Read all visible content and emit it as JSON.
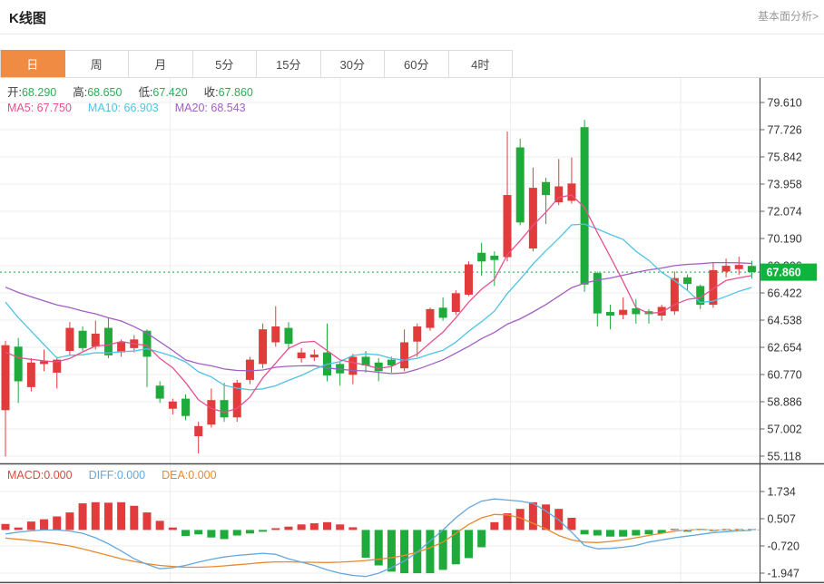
{
  "header": {
    "title": "K线图",
    "more_link": "基本面分析>"
  },
  "tabs": [
    {
      "label": "日",
      "active": true
    },
    {
      "label": "周",
      "active": false
    },
    {
      "label": "月",
      "active": false
    },
    {
      "label": "5分",
      "active": false
    },
    {
      "label": "15分",
      "active": false
    },
    {
      "label": "30分",
      "active": false
    },
    {
      "label": "60分",
      "active": false
    },
    {
      "label": "4时",
      "active": false
    }
  ],
  "info_bar": {
    "open_label": "开:",
    "open": "68.290",
    "high_label": "高:",
    "high": "68.650",
    "low_label": "低:",
    "low": "67.420",
    "close_label": "收:",
    "close": "67.860"
  },
  "ma_bar": {
    "ma5_label": "MA5:",
    "ma5": "67.750",
    "ma10_label": "MA10:",
    "ma10": "66.903",
    "ma20_label": "MA20:",
    "ma20": "68.543"
  },
  "macd_bar": {
    "macd_label": "MACD:",
    "macd": "0.000",
    "diff_label": "DIFF:",
    "diff": "0.000",
    "dea_label": "DEA:",
    "dea": "0.000"
  },
  "last_price_badge": "67.860",
  "colors": {
    "up": "#e23b3b",
    "down": "#1faa3c",
    "ohlc_value": "#2bad56",
    "ma5": "#e8508e",
    "ma10": "#4fc3e4",
    "ma20": "#a35ec5",
    "diff": "#64a8dc",
    "dea": "#e78a2e",
    "macd_label": "#dc4a41",
    "accent_tab": "#ef8b43",
    "badge": "#0fb43c",
    "dotted_line": "#3dbb66",
    "zero_dash": "#a8d8ea",
    "grid": "#ededed",
    "axis_text": "#333333",
    "frame": "#4d4d4d"
  },
  "chart_data": {
    "type": "candlestick",
    "title": "K线图 (daily K-line with MA5/MA10/MA20 overlays and MACD sub-chart)",
    "price_axis_ticks": [
      79.61,
      77.726,
      75.842,
      73.958,
      72.074,
      70.19,
      68.306,
      66.422,
      64.538,
      62.654,
      60.77,
      58.886,
      57.002,
      55.118
    ],
    "last_price": 67.86,
    "candles_ohlc": [
      [
        58.3,
        63.1,
        55.1,
        62.8
      ],
      [
        62.7,
        63.3,
        58.8,
        60.3
      ],
      [
        59.9,
        61.9,
        59.6,
        61.6
      ],
      [
        61.5,
        62.5,
        61.0,
        61.7
      ],
      [
        60.9,
        62.0,
        59.8,
        61.8
      ],
      [
        62.4,
        64.4,
        62.1,
        64.0
      ],
      [
        63.8,
        64.1,
        62.4,
        62.6
      ],
      [
        62.7,
        64.5,
        62.5,
        63.6
      ],
      [
        64.0,
        64.7,
        61.9,
        62.1
      ],
      [
        62.3,
        63.2,
        62.0,
        63.0
      ],
      [
        62.6,
        63.5,
        62.3,
        63.2
      ],
      [
        63.8,
        63.9,
        59.9,
        62.0
      ],
      [
        60.0,
        60.3,
        58.8,
        59.1
      ],
      [
        58.4,
        59.1,
        58.0,
        58.9
      ],
      [
        59.1,
        59.4,
        57.6,
        57.9
      ],
      [
        56.5,
        57.5,
        55.3,
        57.2
      ],
      [
        57.3,
        59.8,
        57.1,
        59.0
      ],
      [
        59.0,
        60.2,
        57.5,
        57.8
      ],
      [
        57.8,
        60.4,
        57.5,
        60.2
      ],
      [
        60.4,
        62.0,
        60.1,
        61.8
      ],
      [
        61.5,
        64.3,
        61.2,
        63.9
      ],
      [
        63.0,
        65.5,
        62.7,
        64.1
      ],
      [
        64.0,
        64.4,
        62.5,
        62.9
      ],
      [
        61.9,
        62.6,
        61.6,
        62.3
      ],
      [
        61.95,
        62.5,
        61.7,
        62.15
      ],
      [
        62.3,
        64.3,
        60.3,
        60.7
      ],
      [
        61.5,
        61.7,
        60.0,
        60.85
      ],
      [
        60.75,
        62.2,
        60.1,
        62.0
      ],
      [
        62.0,
        62.4,
        60.9,
        61.4
      ],
      [
        61.6,
        61.9,
        60.3,
        61.0
      ],
      [
        61.8,
        62.0,
        60.9,
        61.4
      ],
      [
        61.2,
        63.9,
        61.0,
        63.0
      ],
      [
        63.05,
        64.3,
        62.0,
        64.1
      ],
      [
        64.0,
        65.4,
        63.8,
        65.3
      ],
      [
        65.4,
        66.1,
        64.5,
        64.7
      ],
      [
        65.1,
        66.6,
        64.9,
        66.4
      ],
      [
        66.3,
        68.6,
        66.2,
        68.4
      ],
      [
        69.2,
        69.9,
        67.6,
        68.6
      ],
      [
        69.0,
        69.3,
        66.9,
        68.7
      ],
      [
        68.9,
        77.6,
        68.6,
        73.2
      ],
      [
        76.5,
        77.1,
        71.1,
        71.3
      ],
      [
        69.5,
        75.1,
        69.3,
        73.7
      ],
      [
        74.1,
        74.4,
        71.2,
        73.2
      ],
      [
        72.7,
        75.7,
        72.5,
        73.8
      ],
      [
        72.8,
        75.8,
        72.6,
        74.0
      ],
      [
        77.9,
        78.4,
        66.5,
        67.0
      ],
      [
        67.8,
        67.9,
        64.1,
        65.0
      ],
      [
        65.1,
        65.6,
        63.9,
        64.85
      ],
      [
        64.9,
        66.1,
        64.6,
        65.25
      ],
      [
        65.35,
        66.0,
        64.3,
        64.95
      ],
      [
        65.15,
        65.3,
        64.3,
        64.95
      ],
      [
        64.85,
        65.6,
        64.5,
        65.45
      ],
      [
        65.15,
        67.9,
        64.9,
        67.45
      ],
      [
        67.5,
        67.7,
        66.6,
        67.05
      ],
      [
        66.9,
        67.0,
        65.3,
        65.6
      ],
      [
        65.6,
        68.5,
        65.4,
        68.0
      ],
      [
        67.9,
        68.8,
        67.5,
        68.3
      ],
      [
        68.07,
        68.93,
        67.67,
        68.36
      ],
      [
        68.29,
        68.65,
        67.42,
        67.86
      ]
    ],
    "ma_windows": [
      5,
      10,
      20
    ],
    "ma_seed_closes": [
      67.5,
      67.5,
      67.5,
      67.5,
      67.5,
      67.5,
      67.5,
      67.5,
      67.5,
      67.5,
      71.0,
      71.0,
      71.0,
      71.0,
      71.0,
      62.2,
      62.2,
      62.2,
      62.2,
      62.2
    ],
    "macd": {
      "type": "bar+line",
      "axis_ticks": [
        1.734,
        0.507,
        -0.72,
        -1.947
      ],
      "hist": [
        0.27,
        0.11,
        0.38,
        0.48,
        0.61,
        0.79,
        1.2,
        1.25,
        1.23,
        1.25,
        1.09,
        0.79,
        0.41,
        0.11,
        -0.27,
        -0.2,
        -0.34,
        -0.41,
        -0.25,
        -0.16,
        -0.08,
        0.08,
        0.15,
        0.25,
        0.3,
        0.35,
        0.25,
        0.12,
        -1.25,
        -1.6,
        -1.88,
        -1.95,
        -1.95,
        -1.95,
        -1.8,
        -1.55,
        -1.27,
        -0.78,
        0.35,
        0.75,
        0.95,
        1.25,
        1.15,
        0.95,
        0.55,
        -0.2,
        -0.25,
        -0.3,
        -0.3,
        -0.25,
        -0.2,
        -0.15,
        0.05,
        -0.08,
        0.05,
        -0.05,
        0.04,
        0.03,
        0.03
      ],
      "diff": [
        -0.18,
        -0.1,
        -0.04,
        0.0,
        0.0,
        -0.05,
        -0.15,
        -0.35,
        -0.62,
        -0.95,
        -1.3,
        -1.55,
        -1.75,
        -1.7,
        -1.6,
        -1.45,
        -1.32,
        -1.22,
        -1.15,
        -1.1,
        -1.05,
        -1.1,
        -1.3,
        -1.45,
        -1.6,
        -1.8,
        -1.95,
        -2.05,
        -2.1,
        -1.95,
        -1.7,
        -1.4,
        -1.0,
        -0.5,
        0.0,
        0.55,
        1.0,
        1.3,
        1.4,
        1.35,
        1.3,
        1.2,
        0.85,
        0.45,
        -0.1,
        -0.7,
        -0.85,
        -0.83,
        -0.78,
        -0.7,
        -0.55,
        -0.45,
        -0.35,
        -0.28,
        -0.2,
        -0.12,
        -0.08,
        -0.04,
        -0.02
      ],
      "dea": [
        -0.37,
        -0.42,
        -0.48,
        -0.55,
        -0.63,
        -0.72,
        -0.85,
        -1.0,
        -1.15,
        -1.3,
        -1.42,
        -1.52,
        -1.6,
        -1.65,
        -1.68,
        -1.68,
        -1.66,
        -1.62,
        -1.57,
        -1.52,
        -1.47,
        -1.44,
        -1.44,
        -1.45,
        -1.46,
        -1.47,
        -1.45,
        -1.42,
        -1.38,
        -1.32,
        -1.25,
        -1.15,
        -1.0,
        -0.8,
        -0.55,
        -0.15,
        0.25,
        0.55,
        0.7,
        0.68,
        0.55,
        0.3,
        0.05,
        -0.25,
        -0.45,
        -0.55,
        -0.57,
        -0.52,
        -0.45,
        -0.35,
        -0.25,
        -0.15,
        -0.05,
        0.0,
        0.02,
        0.0,
        -0.01,
        -0.01,
        -0.02
      ]
    }
  }
}
